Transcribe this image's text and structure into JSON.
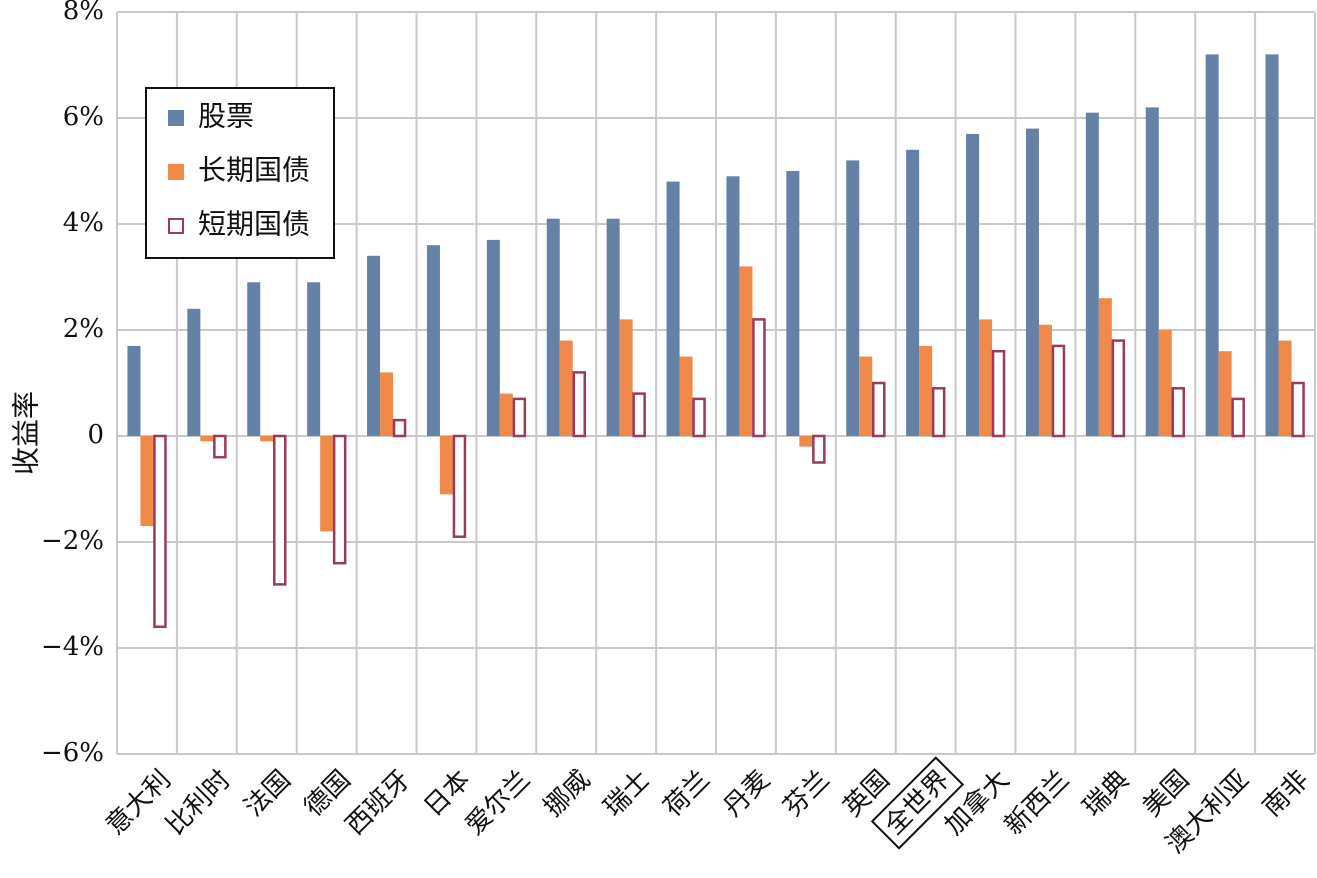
{
  "chart_data": {
    "type": "bar",
    "ylabel": "收益率",
    "ylim": [
      -6,
      8
    ],
    "yticks": [
      -6,
      -4,
      -2,
      0,
      2,
      4,
      6,
      8
    ],
    "ytick_labels": [
      "−6%",
      "−4%",
      "−2%",
      "0",
      "2%",
      "4%",
      "6%",
      "8%"
    ],
    "grid": true,
    "legend_position": "top-left",
    "categories": [
      "意大利",
      "比利时",
      "法国",
      "德国",
      "西班牙",
      "日本",
      "爱尔兰",
      "挪威",
      "瑞士",
      "荷兰",
      "丹麦",
      "芬兰",
      "英国",
      "全世界",
      "加拿大",
      "新西兰",
      "瑞典",
      "美国",
      "澳大利亚",
      "南非"
    ],
    "highlighted_category": "全世界",
    "series": [
      {
        "name": "股票",
        "color": "#6581a6",
        "style": "filled",
        "values": [
          1.7,
          2.4,
          2.9,
          2.9,
          3.4,
          3.6,
          3.7,
          4.1,
          4.1,
          4.8,
          4.9,
          5.0,
          5.2,
          5.4,
          5.7,
          5.8,
          6.1,
          6.2,
          7.2,
          7.2
        ]
      },
      {
        "name": "长期国债",
        "color": "#f08a4b",
        "style": "filled",
        "values": [
          -1.7,
          -0.1,
          -0.1,
          -1.8,
          1.2,
          -1.1,
          0.8,
          1.8,
          2.2,
          1.5,
          3.2,
          -0.2,
          1.5,
          1.7,
          2.2,
          2.1,
          2.6,
          2.0,
          1.6,
          1.8
        ]
      },
      {
        "name": "短期国债",
        "color": "#9a3a5c",
        "style": "outline",
        "values": [
          -3.6,
          -0.4,
          -2.8,
          -2.4,
          0.3,
          -1.9,
          0.7,
          1.2,
          0.8,
          0.7,
          2.2,
          -0.5,
          1.0,
          0.9,
          1.6,
          1.7,
          1.8,
          0.9,
          0.7,
          1.0
        ]
      }
    ]
  }
}
